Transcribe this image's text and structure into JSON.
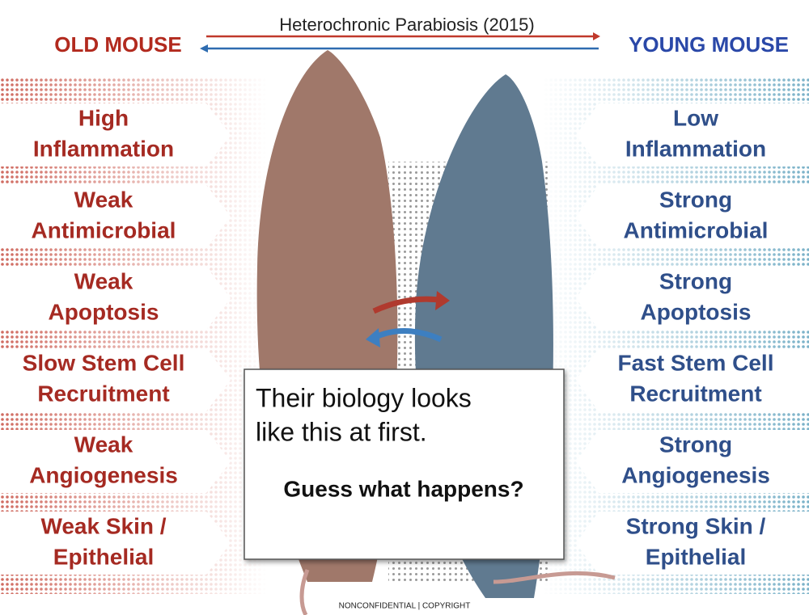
{
  "header": {
    "title": "Heterochronic Parabiosis (2015)",
    "left_heading": "OLD MOUSE",
    "right_heading": "YOUNG MOUSE"
  },
  "left_items": [
    [
      "High",
      "Inflammation"
    ],
    [
      "Weak",
      "Antimicrobial"
    ],
    [
      "Weak",
      "Apoptosis"
    ],
    [
      "Slow Stem Cell",
      "Recruitment"
    ],
    [
      "Weak",
      "Angiogenesis"
    ],
    [
      "Weak Skin /",
      "Epithelial"
    ]
  ],
  "right_items": [
    [
      "Low",
      "Inflammation"
    ],
    [
      "Strong",
      "Antimicrobial"
    ],
    [
      "Strong",
      "Apoptosis"
    ],
    [
      "Fast Stem Cell",
      "Recruitment"
    ],
    [
      "Strong",
      "Angiogenesis"
    ],
    [
      "Strong Skin /",
      "Epithelial"
    ]
  ],
  "callout": {
    "lines": [
      "Their biology looks",
      "like this at first."
    ],
    "question": "Guess what happens?"
  },
  "footer": "NONCONFIDENTIAL | COPYRIGHT"
}
